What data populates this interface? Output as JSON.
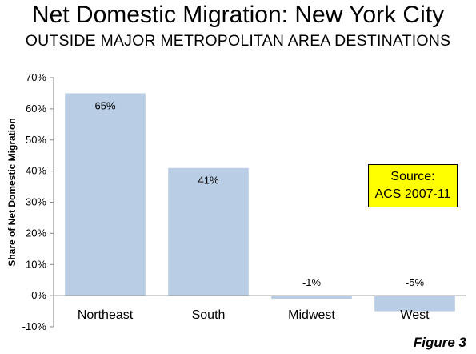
{
  "chart_data": {
    "type": "bar",
    "title": "Net Domestic Migration: New York City",
    "subtitle": "OUTSIDE MAJOR METROPOLITAN AREA DESTINATIONS",
    "ylabel": "Share of Net Domestic Migration",
    "xlabel": "",
    "categories": [
      "Northeast",
      "South",
      "Midwest",
      "West"
    ],
    "values": [
      65,
      41,
      -1,
      -5
    ],
    "data_labels": [
      "65%",
      "41%",
      "-1%",
      "-5%"
    ],
    "ylim": [
      -10,
      70
    ],
    "yticks": [
      -10,
      0,
      10,
      20,
      30,
      40,
      50,
      60,
      70
    ],
    "ytick_labels": [
      "-10%",
      "0%",
      "10%",
      "20%",
      "30%",
      "40%",
      "50%",
      "60%",
      "70%"
    ],
    "grid": false,
    "bar_color": "#b9cde5"
  },
  "source_box": {
    "line1": "Source:",
    "line2": "ACS 2007-11",
    "color": "#ffff00"
  },
  "figure_label": "Figure 3"
}
